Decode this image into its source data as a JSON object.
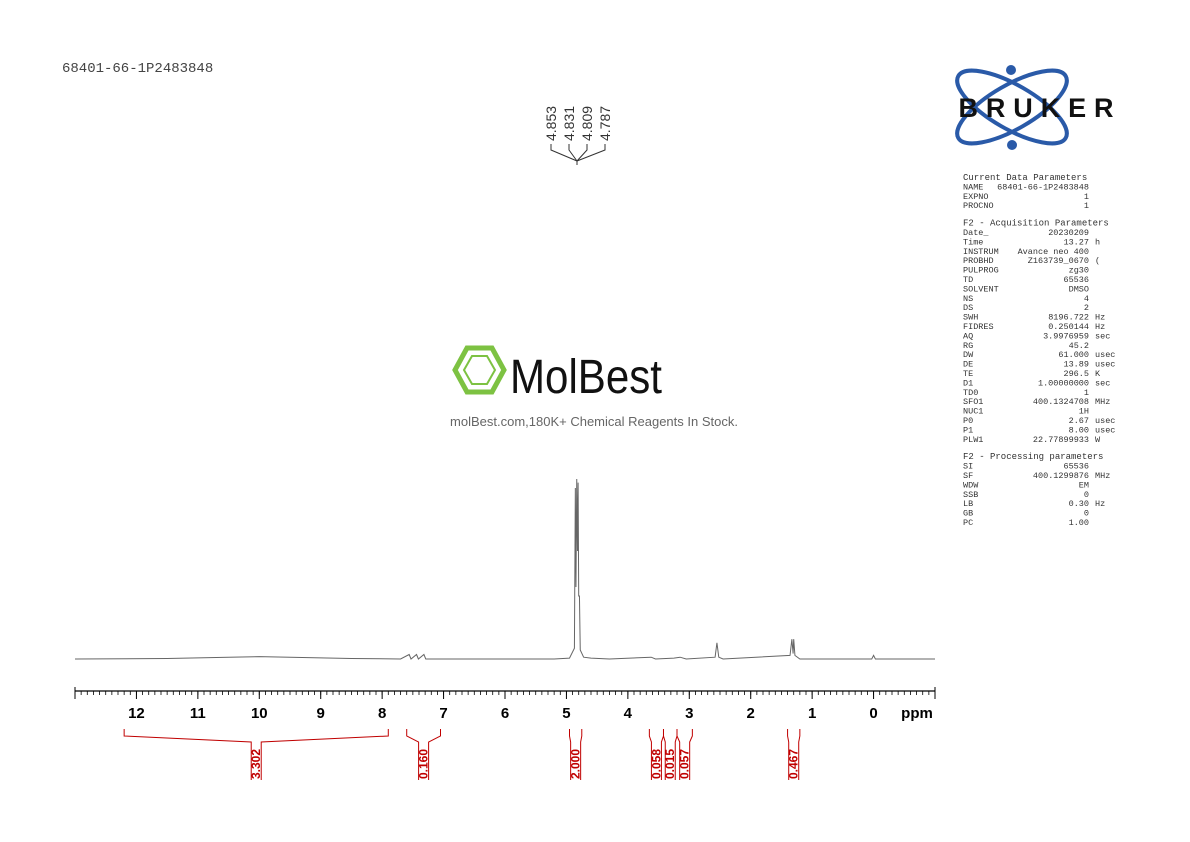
{
  "sample_id": "68401-66-1P2483848",
  "peak_labels": [
    4.853,
    4.831,
    4.809,
    4.787
  ],
  "logo": {
    "brand": "BRUKER"
  },
  "watermark": {
    "name": "MolBest",
    "tagline": "molBest.com,180K+ Chemical Reagents In Stock."
  },
  "parameters": [
    {
      "title": "Current Data Parameters",
      "rows": [
        [
          "NAME",
          "68401-66-1P2483848"
        ],
        [
          "EXPNO",
          "1"
        ],
        [
          "PROCNO",
          "1"
        ]
      ]
    },
    {
      "title": "F2 - Acquisition Parameters",
      "rows": [
        [
          "Date_",
          "20230209"
        ],
        [
          "Time",
          "13.27",
          "h"
        ],
        [
          "INSTRUM",
          "Avance neo 400"
        ],
        [
          "PROBHD",
          "Z163739_0670",
          "("
        ],
        [
          "PULPROG",
          "zg30"
        ],
        [
          "TD",
          "65536"
        ],
        [
          "SOLVENT",
          "DMSO"
        ],
        [
          "NS",
          "4"
        ],
        [
          "DS",
          "2"
        ],
        [
          "SWH",
          "8196.722",
          "Hz"
        ],
        [
          "FIDRES",
          "0.250144",
          "Hz"
        ],
        [
          "AQ",
          "3.9976959",
          "sec"
        ],
        [
          "RG",
          "45.2"
        ],
        [
          "DW",
          "61.000",
          "usec"
        ],
        [
          "DE",
          "13.89",
          "usec"
        ],
        [
          "TE",
          "296.5",
          "K"
        ],
        [
          "D1",
          "1.00000000",
          "sec"
        ],
        [
          "TD0",
          "1"
        ],
        [
          "SFO1",
          "400.1324708",
          "MHz"
        ],
        [
          "NUC1",
          "1H"
        ],
        [
          "P0",
          "2.67",
          "usec"
        ],
        [
          "P1",
          "8.00",
          "usec"
        ],
        [
          "PLW1",
          "22.77899933",
          "W"
        ]
      ]
    },
    {
      "title": "F2 - Processing parameters",
      "rows": [
        [
          "SI",
          "65536"
        ],
        [
          "SF",
          "400.1299876",
          "MHz"
        ],
        [
          "WDW",
          "EM"
        ],
        [
          "SSB",
          "0"
        ],
        [
          "LB",
          "0.30",
          "Hz"
        ],
        [
          "GB",
          "0"
        ],
        [
          "PC",
          "1.00"
        ]
      ]
    }
  ],
  "chart_data": {
    "type": "line",
    "x_label": "ppm",
    "color": "#666666",
    "integral_color": "#c00000",
    "xlim": [
      13,
      -1
    ],
    "ylim": [
      0,
      100
    ],
    "xticks": [
      12,
      11,
      10,
      9,
      8,
      7,
      6,
      5,
      4,
      3,
      2,
      1,
      0
    ],
    "xminor_step": 0.1,
    "x": [
      13,
      11.5,
      10.5,
      10,
      9.5,
      8.5,
      7.7,
      7.56,
      7.53,
      7.44,
      7.41,
      7.32,
      7.29,
      5.2,
      4.95,
      4.87,
      4.855,
      4.845,
      4.832,
      4.82,
      4.81,
      4.8,
      4.788,
      4.775,
      4.72,
      4.6,
      4.3,
      3.62,
      3.55,
      3.25,
      3.15,
      3.05,
      2.58,
      2.55,
      2.52,
      2.45,
      1.36,
      1.33,
      1.31,
      1.3,
      1.28,
      1.2,
      0.03,
      0,
      -0.03,
      -1
    ],
    "values": [
      0,
      0.3,
      1,
      1.3,
      1,
      0.3,
      0,
      2.5,
      0,
      2.5,
      0,
      2.5,
      0,
      0,
      0.5,
      6,
      95,
      40,
      100,
      60,
      98,
      35,
      35,
      5,
      1,
      0.5,
      0,
      1,
      0,
      0.5,
      1,
      0,
      1,
      9,
      1,
      0,
      2,
      11,
      3,
      11,
      2,
      0,
      0,
      2,
      0,
      0
    ],
    "integrals": [
      {
        "range": [
          12.2,
          7.9
        ],
        "value": 3.302
      },
      {
        "range": [
          7.6,
          7.05
        ],
        "value": 0.16,
        "label": "0.160"
      },
      {
        "range": [
          4.95,
          4.75
        ],
        "value": 2,
        "label": "2.000"
      },
      {
        "range": [
          3.65,
          3.42
        ],
        "value": 0.058
      },
      {
        "range": [
          3.42,
          3.2
        ],
        "value": 0.015
      },
      {
        "range": [
          3.2,
          2.95
        ],
        "value": 0.057
      },
      {
        "range": [
          1.4,
          1.2
        ],
        "value": 0.467
      }
    ]
  }
}
